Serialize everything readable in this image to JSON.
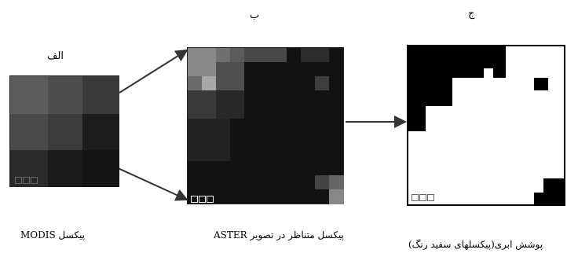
{
  "panels": {
    "a": {
      "letter": "الف",
      "caption": "پیکسل MODIS"
    },
    "b": {
      "letter": "ب",
      "caption": "پیکسل متناظر در تصویر ASTER"
    },
    "c": {
      "letter": "ج",
      "caption": "پوشش ابری(پیکسلهای سفید رنگ)"
    }
  },
  "colors": {
    "background": "#ffffff",
    "frame": "#222222",
    "arrow": "#333333"
  }
}
